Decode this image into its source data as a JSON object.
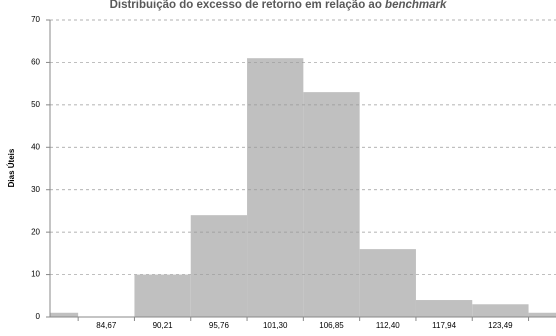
{
  "chart_data": {
    "type": "bar",
    "title": "Distribuição do excesso de retorno em relação ao",
    "title_italic": "benchmark",
    "y_label": "Dias Úteis",
    "categories": [
      null,
      "84,67",
      "90,21",
      "95,76",
      "101,30",
      "106,85",
      "112,40",
      "117,94",
      "123,49",
      null
    ],
    "values": [
      1,
      0,
      10,
      24,
      61,
      53,
      16,
      4,
      3,
      1
    ],
    "color": "#c0c0c0",
    "ylim": [
      0,
      70
    ],
    "yticks": [
      0,
      10,
      20,
      30,
      40,
      50,
      60,
      70
    ],
    "grid": true
  }
}
